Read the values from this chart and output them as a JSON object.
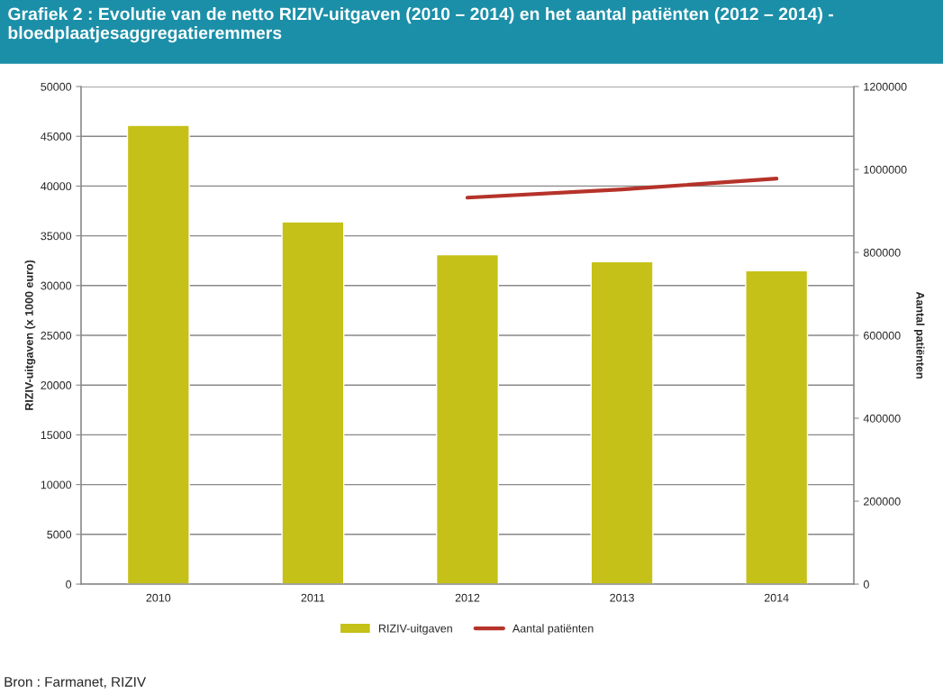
{
  "chart_data": {
    "type": "bar",
    "title": "Grafiek 2 : Evolutie van de netto RIZIV-uitgaven (2010 – 2014) en het aantal patiënten (2012 – 2014) - bloedplaatjesaggregatieremmers",
    "categories": [
      "2010",
      "2011",
      "2012",
      "2013",
      "2014"
    ],
    "series": [
      {
        "name": "RIZIV-uitgaven",
        "color": "#c5c118",
        "values": [
          46100,
          36400,
          33100,
          32400,
          31500
        ]
      },
      {
        "name": "Aantal patiënten",
        "color": "#b5332a",
        "type": "line",
        "axis": "y2",
        "values": [
          null,
          null,
          932000,
          952000,
          978000
        ]
      }
    ],
    "ylabel": "RIZIV-uitgaven (x 1000 euro)",
    "y2label": "Aantal patiënten",
    "ylim": [
      0,
      50000
    ],
    "yticks": [
      0,
      5000,
      10000,
      15000,
      20000,
      25000,
      30000,
      35000,
      40000,
      45000,
      50000
    ],
    "y2lim": [
      0,
      1200000
    ],
    "y2ticks": [
      0,
      200000,
      400000,
      600000,
      800000,
      1000000,
      1200000
    ],
    "grid": "y",
    "legend": "bottom",
    "annotations": [
      "Bron : Farmanet, RIZIV"
    ]
  }
}
